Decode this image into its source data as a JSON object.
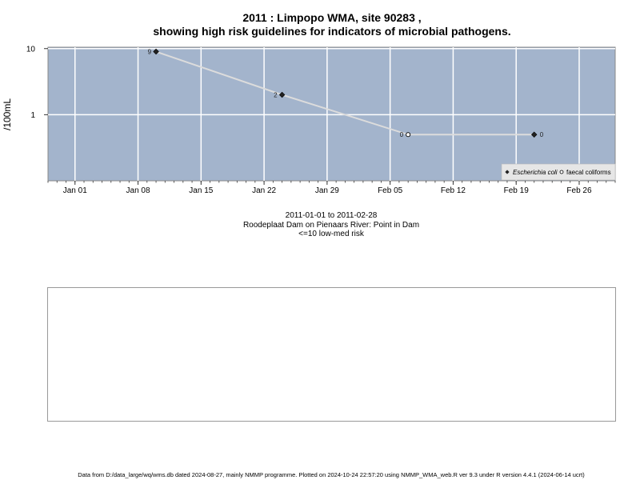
{
  "title_line1": "2011 : Limpopo WMA, site 90283 ,",
  "title_line2": "showing high risk guidelines for indicators of microbial pathogens.",
  "subtitle": {
    "date_range": "2011-01-01 to 2011-02-28",
    "site": "Roodeplaat Dam on Pienaars River: Point in Dam",
    "risk": "<=10 low-med risk"
  },
  "footer": "Data from D:/data_large/wq/wms.db dated 2024-08-27, mainly NMMP programme. Plotted on 2024-10-24 22:57:20 using NMMP_WMA_web.R ver 9.3 under R version 4.4.1 (2024-06-14 ucrt)",
  "colors": {
    "plot_bg": "#a3b4cc",
    "grid": "#ffffff",
    "line": "#dcdcdc",
    "ecoli_marker": "#222222",
    "faecal_marker": "#ffffff"
  },
  "chart_data": {
    "type": "line",
    "xlabel": "",
    "ylabel": "/100mL",
    "y_scale": "log",
    "xlim": [
      "2010-12-29",
      "2011-03-02"
    ],
    "ylim": [
      0.1,
      10.5
    ],
    "x_ticks": [
      {
        "date": "2011-01-01",
        "label": "Jan 01"
      },
      {
        "date": "2011-01-08",
        "label": "Jan 08"
      },
      {
        "date": "2011-01-15",
        "label": "Jan 15"
      },
      {
        "date": "2011-01-22",
        "label": "Jan 22"
      },
      {
        "date": "2011-01-29",
        "label": "Jan 29"
      },
      {
        "date": "2011-02-05",
        "label": "Feb 05"
      },
      {
        "date": "2011-02-12",
        "label": "Feb 12"
      },
      {
        "date": "2011-02-19",
        "label": "Feb 19"
      },
      {
        "date": "2011-02-26",
        "label": "Feb 26"
      }
    ],
    "y_ticks": [
      {
        "value": 1,
        "label": "1"
      },
      {
        "value": 10,
        "label": "10"
      }
    ],
    "grid": true,
    "legend_position": "bottom-right",
    "series": [
      {
        "name": "Escherichia coli",
        "marker": "filled-diamond",
        "points": [
          {
            "date": "2011-01-10",
            "value": 9,
            "label": "9"
          },
          {
            "date": "2011-01-24",
            "value": 2,
            "label": "2"
          },
          {
            "date": "2011-02-21",
            "value": 0.5,
            "label": "0"
          }
        ]
      },
      {
        "name": "faecal coliforms",
        "marker": "open-circle",
        "points": [
          {
            "date": "2011-02-07",
            "value": 0.5,
            "label": "0"
          }
        ]
      }
    ],
    "line_points": [
      {
        "date": "2011-01-10",
        "value": 9
      },
      {
        "date": "2011-01-24",
        "value": 2
      },
      {
        "date": "2011-02-07",
        "value": 0.5
      },
      {
        "date": "2011-02-21",
        "value": 0.5
      }
    ]
  }
}
